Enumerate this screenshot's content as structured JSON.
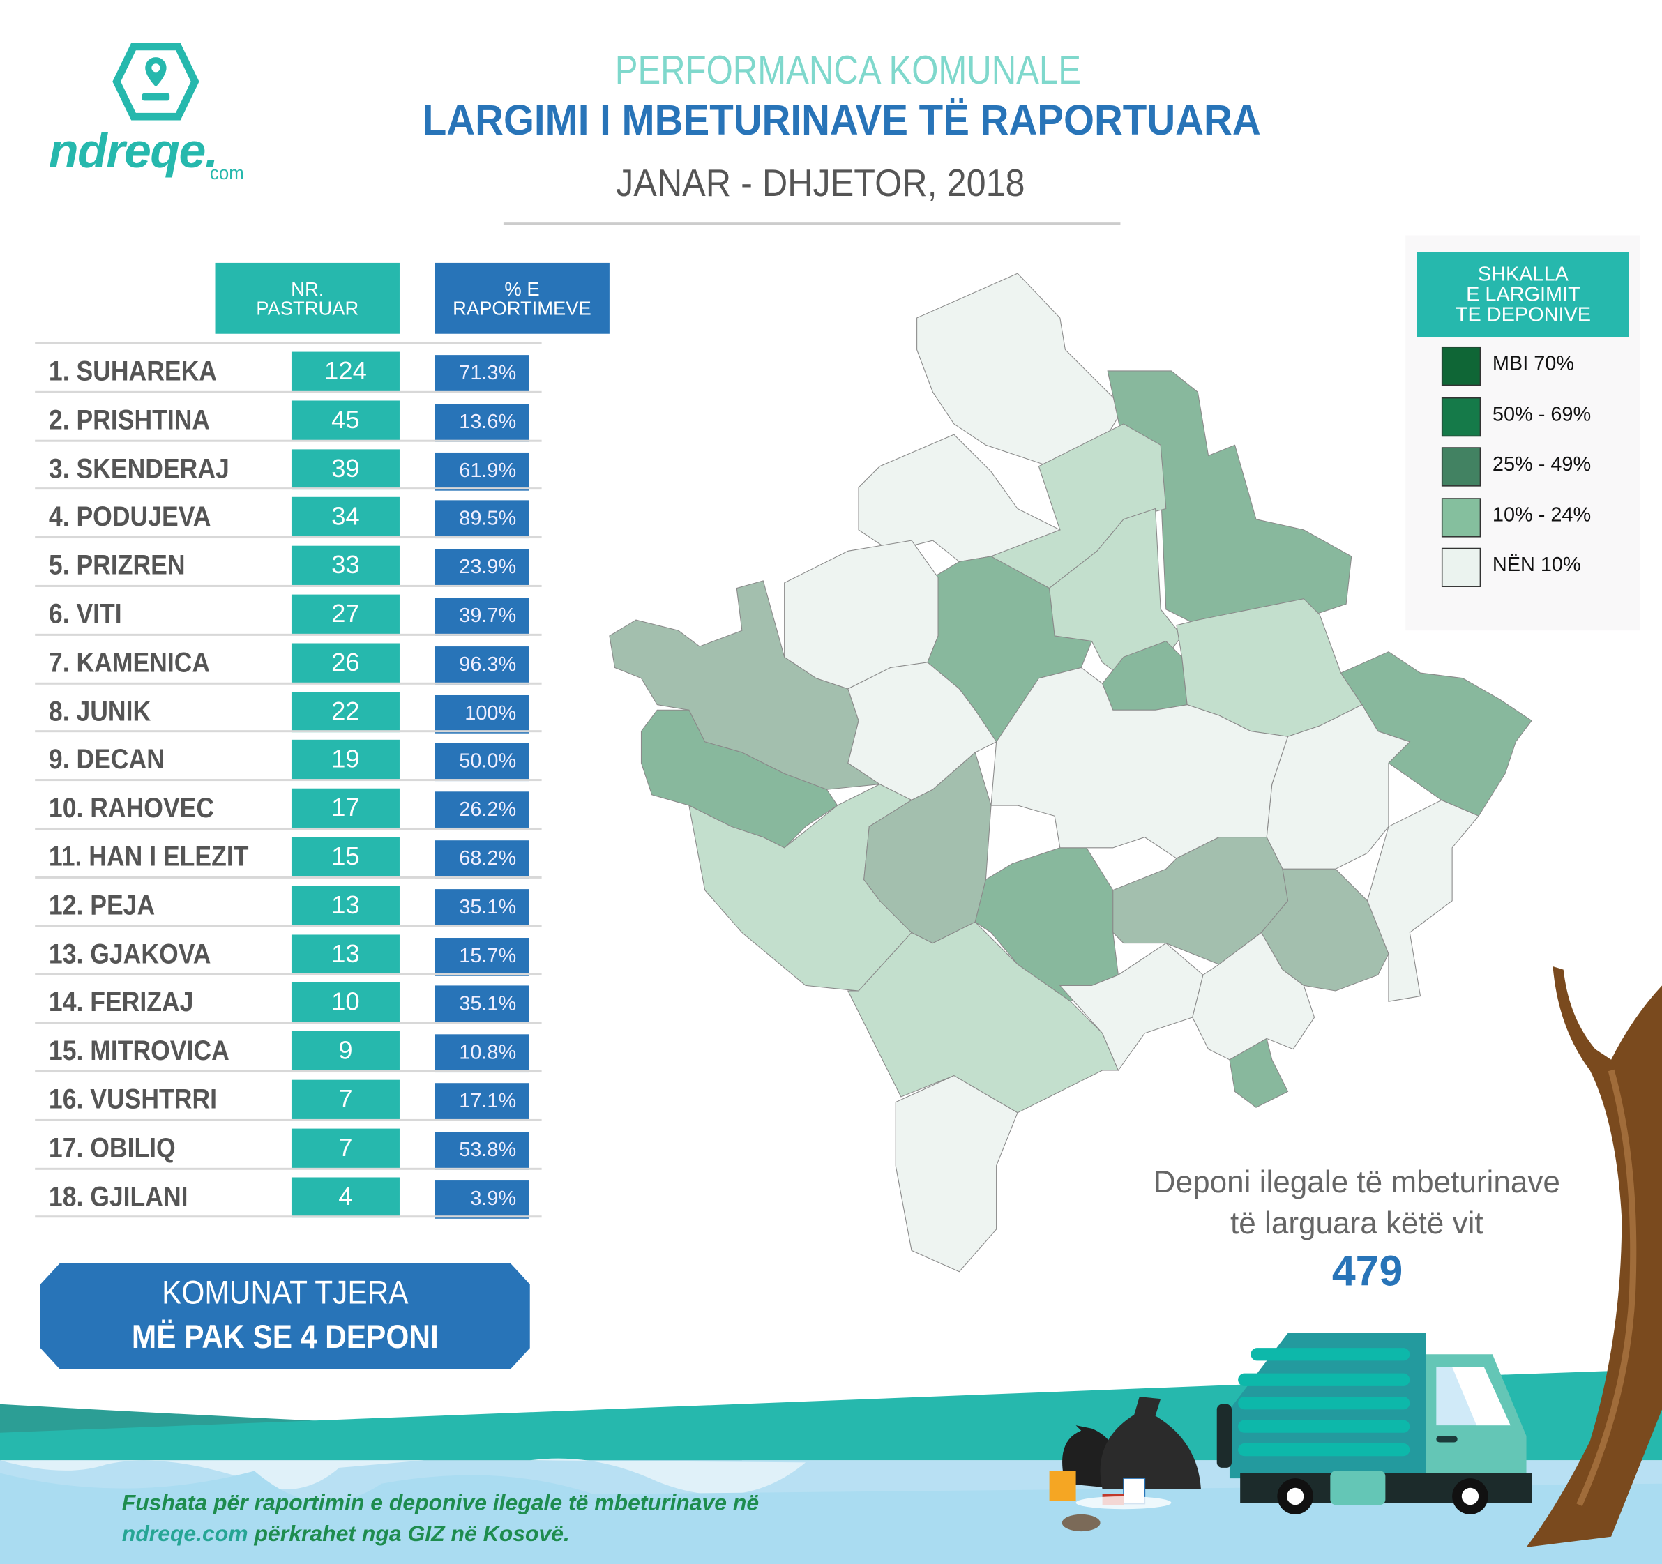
{
  "logo": {
    "brand": "ndreqe.",
    "suffix": "com",
    "color": "#26b8ad"
  },
  "header": {
    "kicker": "PERFORMANCA KOMUNALE",
    "title": "LARGIMI I MBETURINAVE TË RAPORTUARA",
    "period": "JANAR - DHJETOR, 2018"
  },
  "table": {
    "columns": [
      {
        "label_line1": "NR.",
        "label_line2": "PASTRUAR"
      },
      {
        "label_line1": "% E",
        "label_line2": "RAPORTIMEVE"
      }
    ],
    "rows": [
      {
        "name": "1. SUHAREKA",
        "count": "124",
        "percent": "71.3%"
      },
      {
        "name": "2. PRISHTINA",
        "count": "45",
        "percent": "13.6%"
      },
      {
        "name": "3. SKENDERAJ",
        "count": "39",
        "percent": "61.9%"
      },
      {
        "name": "4. PODUJEVA",
        "count": "34",
        "percent": "89.5%"
      },
      {
        "name": "5. PRIZREN",
        "count": "33",
        "percent": "23.9%"
      },
      {
        "name": "6. VITI",
        "count": "27",
        "percent": "39.7%"
      },
      {
        "name": "7. KAMENICA",
        "count": "26",
        "percent": "96.3%"
      },
      {
        "name": "8. JUNIK",
        "count": "22",
        "percent": "100%"
      },
      {
        "name": "9. DECAN",
        "count": "19",
        "percent": "50.0%"
      },
      {
        "name": "10. RAHOVEC",
        "count": "17",
        "percent": "26.2%"
      },
      {
        "name": "11. HAN I ELEZIT",
        "count": "15",
        "percent": "68.2%"
      },
      {
        "name": "12. PEJA",
        "count": "13",
        "percent": "35.1%"
      },
      {
        "name": "13. GJAKOVA",
        "count": "13",
        "percent": "15.7%"
      },
      {
        "name": "14. FERIZAJ",
        "count": "10",
        "percent": "35.1%"
      },
      {
        "name": "15. MITROVICA",
        "count": "9",
        "percent": "10.8%"
      },
      {
        "name": "16. VUSHTRRI",
        "count": "7",
        "percent": "17.1%"
      },
      {
        "name": "17. OBILIQ",
        "count": "7",
        "percent": "53.8%"
      },
      {
        "name": "18. GJILANI",
        "count": "4",
        "percent": "3.9%"
      }
    ]
  },
  "other": {
    "line1": "KOMUNAT TJERA",
    "line2": "MË PAK SE 4 DEPONI"
  },
  "legend": {
    "title_line1": "SHKALLA",
    "title_line2": "E LARGIMIT",
    "title_line3": "TE DEPONIVE",
    "items": [
      {
        "label": "MBI 70%",
        "color": "#0f6636"
      },
      {
        "label": "50% - 69%",
        "color": "#157a49"
      },
      {
        "label": "25% - 49%",
        "color": "#428262"
      },
      {
        "label": "10% - 24%",
        "color": "#85bf9e"
      },
      {
        "label": "NËN 10%",
        "color": "#ebf3ef"
      }
    ]
  },
  "summary": {
    "line1": "Deponi ilegale të mbeturinave",
    "line2": "të larguara këtë vit",
    "value": "479"
  },
  "footer": {
    "line1": "Fushata për raportimin e deponive ilegale të mbeturinave në",
    "link": "ndreqe.com",
    "line2_rest": " përkrahet nga GIZ në Kosovë."
  },
  "colors": {
    "teal": "#26b8ad",
    "blue": "#2874b8",
    "footer_green": "#1e8c4e"
  }
}
